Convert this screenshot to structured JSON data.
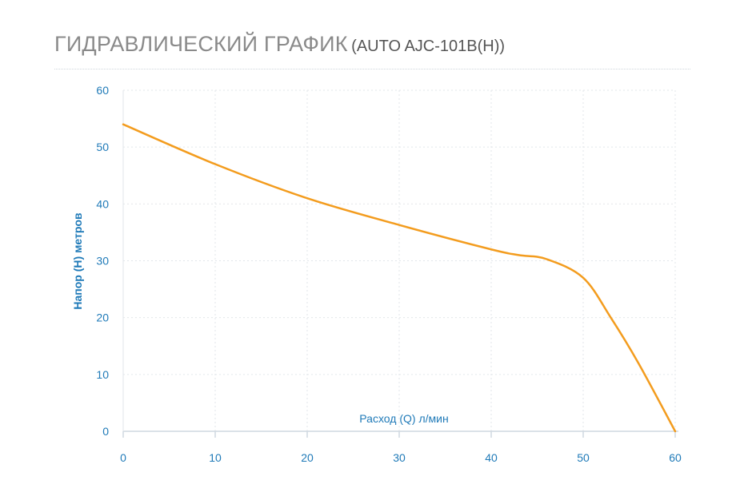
{
  "header": {
    "title": "ГИДРАВЛИЧЕСКИЙ ГРАФИК",
    "model": "(AUTO AJC-101B(H))"
  },
  "colors": {
    "line": "#f39c1e",
    "ticks": "#1f7ab8",
    "grid": "#e2e6ea",
    "title": "#8a8a8a"
  },
  "chart_data": {
    "type": "line",
    "xlabel": "Расход (Q) л/мин",
    "ylabel": "Напор (Н) метров",
    "xlim": [
      0,
      60
    ],
    "ylim": [
      0,
      60
    ],
    "x_ticks": [
      0,
      10,
      20,
      30,
      40,
      50,
      60
    ],
    "y_ticks": [
      0,
      10,
      20,
      30,
      40,
      50,
      60
    ],
    "grid": true,
    "legend": "none",
    "series": [
      {
        "x": [
          0,
          10,
          20,
          30,
          40,
          43,
          46,
          50,
          53,
          56,
          60
        ],
        "y": [
          54,
          47,
          41,
          36.3,
          32,
          31,
          30.3,
          27,
          20,
          12,
          0
        ]
      }
    ]
  }
}
